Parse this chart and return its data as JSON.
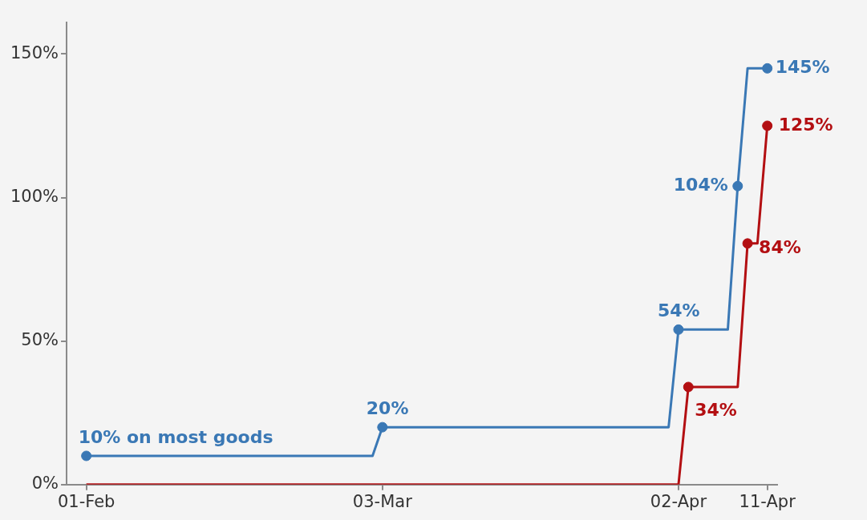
{
  "chart_data": {
    "type": "line",
    "xlim": [
      "--01-30",
      "--04-12"
    ],
    "ylim": [
      0,
      161
    ],
    "xticks": [
      {
        "value": "--02-01",
        "label": "01-Feb"
      },
      {
        "value": "--03-03",
        "label": "03-Mar"
      },
      {
        "value": "--04-02",
        "label": "02-Apr"
      },
      {
        "value": "--04-11",
        "label": "11-Apr"
      }
    ],
    "yticks": [
      {
        "value": 0,
        "label": "0%"
      },
      {
        "value": 50,
        "label": "50%"
      },
      {
        "value": 100,
        "label": "100%"
      },
      {
        "value": 150,
        "label": "150%"
      }
    ],
    "grid": false,
    "legend": false,
    "series": [
      {
        "color": "#3a78b5",
        "marker": "none",
        "x": [
          "--02-01",
          "--03-02",
          "--03-03",
          "--04-01",
          "--04-02",
          "--04-07",
          "--04-08",
          "--04-09",
          "--04-11"
        ],
        "values": [
          10,
          10,
          20,
          20,
          54,
          54,
          104,
          145,
          145
        ]
      },
      {
        "color": "#b30f12",
        "marker": "none",
        "x": [
          "--02-01",
          "--04-02",
          "--04-03",
          "--04-08",
          "--04-09",
          "--04-10",
          "--04-11"
        ],
        "values": [
          0,
          0,
          34,
          34,
          84,
          84,
          125
        ]
      },
      {
        "type": "scatter",
        "color": "#3a78b5",
        "marker": "circle",
        "x": [
          "--02-01",
          "--03-03",
          "--04-02",
          "--04-08",
          "--04-11"
        ],
        "values": [
          10,
          20,
          54,
          104,
          145
        ]
      },
      {
        "type": "scatter",
        "color": "#b30f12",
        "marker": "circle",
        "x": [
          "--04-03",
          "--04-09",
          "--04-11"
        ],
        "values": [
          34,
          84,
          125
        ]
      }
    ],
    "annotations": [
      {
        "text": "10% on most goods",
        "x": "--02-01",
        "y": 10
      },
      {
        "text": "20%",
        "x": "--03-03",
        "y": 20
      },
      {
        "text": "54%",
        "x": "--04-02",
        "y": 54
      },
      {
        "text": "104%",
        "x": "--04-08",
        "y": 104
      },
      {
        "text": "145%",
        "x": "--04-11",
        "y": 145
      },
      {
        "text": "34%",
        "x": "--04-03",
        "y": 34
      },
      {
        "text": "84%",
        "x": "--04-09",
        "y": 84
      },
      {
        "text": "125%",
        "x": "--04-11",
        "y": 125
      }
    ]
  }
}
